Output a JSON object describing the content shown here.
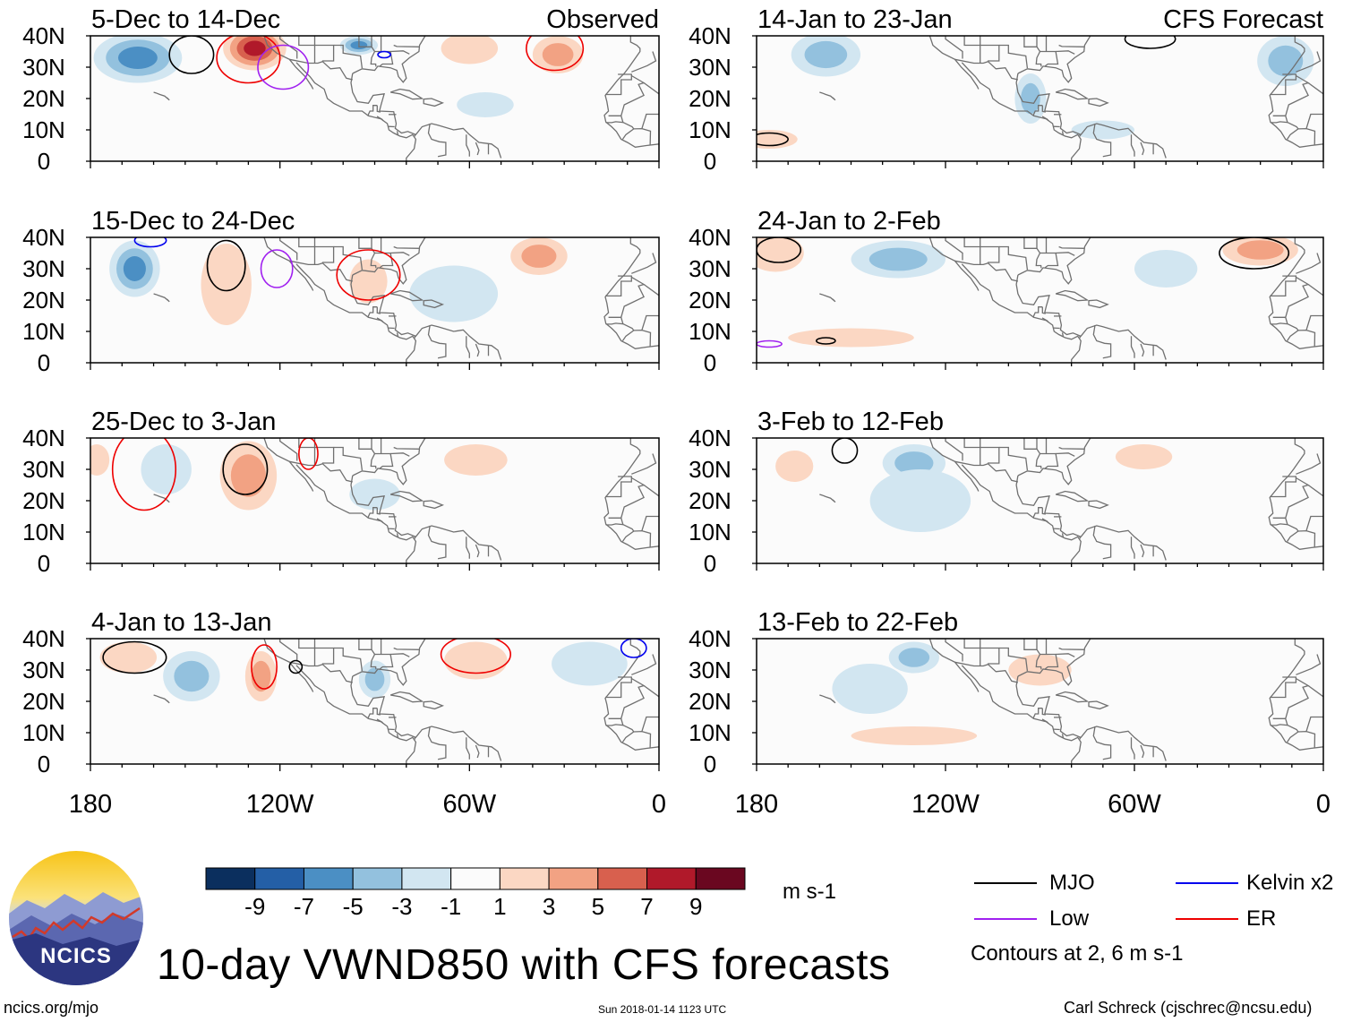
{
  "title": "10-day VWND850 with CFS forecasts",
  "footer": {
    "left": "ncics.org/mjo",
    "center": "Sun 2018-01-14 1123 UTC",
    "right": "Carl Schreck (cjschrec@ncsu.edu)"
  },
  "logo": {
    "text": "NCICS"
  },
  "column_labels": {
    "observed": "Observed",
    "forecast": "CFS Forecast"
  },
  "colorbar": {
    "units": "m s-1",
    "tick_labels": [
      "-9",
      "-7",
      "-5",
      "-3",
      "-1",
      "1",
      "3",
      "5",
      "7",
      "9"
    ],
    "colors": [
      "#0b2f5e",
      "#245fa6",
      "#4b8fc4",
      "#93c1de",
      "#d2e6f1",
      "#fbfbfb",
      "#fbd7c3",
      "#f2a283",
      "#d8604e",
      "#b0192a",
      "#6a0720"
    ]
  },
  "legend": {
    "items": [
      {
        "label": "MJO",
        "color": "#000000"
      },
      {
        "label": "Low",
        "color": "#a020f0"
      },
      {
        "label": "Kelvin x2",
        "color": "#0000ee"
      },
      {
        "label": "ER",
        "color": "#ee0000"
      }
    ],
    "note": "Contours at 2, 6 m s-1"
  },
  "chart_data": {
    "type": "heatmap",
    "variable": "VWND850",
    "x_ticks": [
      "180",
      "120W",
      "60W",
      "0"
    ],
    "y_ticks": [
      "40N",
      "30N",
      "20N",
      "10N",
      "0"
    ],
    "x_range": [
      -180,
      0
    ],
    "y_range": [
      0,
      40
    ],
    "panels": [
      {
        "period": "5-Dec to 14-Dec",
        "source": "Observed",
        "blobs": [
          {
            "lon": -165,
            "lat": 33,
            "rx": 14,
            "ry": 8,
            "value": -6
          },
          {
            "lon": -128,
            "lat": 36,
            "rx": 10,
            "ry": 7,
            "value": 9
          },
          {
            "lon": -95,
            "lat": 37,
            "rx": 6,
            "ry": 3,
            "value": -7
          },
          {
            "lon": -60,
            "lat": 36,
            "rx": 9,
            "ry": 5,
            "value": 3
          },
          {
            "lon": -32,
            "lat": 34,
            "rx": 8,
            "ry": 6,
            "value": 4
          },
          {
            "lon": -55,
            "lat": 18,
            "rx": 9,
            "ry": 4,
            "value": -1.5
          }
        ],
        "contours": [
          {
            "type": "MJO",
            "lon": -148,
            "lat": 34,
            "rx": 7,
            "ry": 6
          },
          {
            "type": "ER",
            "lon": -130,
            "lat": 33,
            "rx": 10,
            "ry": 8
          },
          {
            "type": "Low",
            "lon": -119,
            "lat": 30,
            "rx": 8,
            "ry": 7
          },
          {
            "type": "ER",
            "lon": -33,
            "lat": 36,
            "rx": 9,
            "ry": 7
          },
          {
            "type": "Kelvin x2",
            "lon": -87,
            "lat": 34,
            "rx": 2,
            "ry": 1
          }
        ]
      },
      {
        "period": "15-Dec to 24-Dec",
        "source": "Observed",
        "blobs": [
          {
            "lon": -166,
            "lat": 30,
            "rx": 8,
            "ry": 9,
            "value": -6
          },
          {
            "lon": -137,
            "lat": 25,
            "rx": 8,
            "ry": 13,
            "value": 3
          },
          {
            "lon": -92,
            "lat": 26,
            "rx": 6,
            "ry": 7,
            "value": 3
          },
          {
            "lon": -38,
            "lat": 34,
            "rx": 9,
            "ry": 6,
            "value": 5
          },
          {
            "lon": -65,
            "lat": 22,
            "rx": 14,
            "ry": 9,
            "value": -1.5
          }
        ],
        "contours": [
          {
            "type": "MJO",
            "lon": -137,
            "lat": 31,
            "rx": 6,
            "ry": 8
          },
          {
            "type": "Low",
            "lon": -121,
            "lat": 30,
            "rx": 5,
            "ry": 6
          },
          {
            "type": "ER",
            "lon": -92,
            "lat": 28,
            "rx": 10,
            "ry": 8
          },
          {
            "type": "Kelvin x2",
            "lon": -161,
            "lat": 39,
            "rx": 5,
            "ry": 2
          }
        ]
      },
      {
        "period": "25-Dec to 3-Jan",
        "source": "Observed",
        "blobs": [
          {
            "lon": -130,
            "lat": 28,
            "rx": 9,
            "ry": 11,
            "value": 5
          },
          {
            "lon": -156,
            "lat": 30,
            "rx": 8,
            "ry": 8,
            "value": -3
          },
          {
            "lon": -58,
            "lat": 33,
            "rx": 10,
            "ry": 5,
            "value": 3
          },
          {
            "lon": -90,
            "lat": 22,
            "rx": 8,
            "ry": 5,
            "value": -3
          },
          {
            "lon": -178,
            "lat": 33,
            "rx": 4,
            "ry": 5,
            "value": 3
          }
        ],
        "contours": [
          {
            "type": "MJO",
            "lon": -131,
            "lat": 30,
            "rx": 7,
            "ry": 8
          },
          {
            "type": "ER",
            "lon": -163,
            "lat": 30,
            "rx": 10,
            "ry": 13
          },
          {
            "type": "ER",
            "lon": -111,
            "lat": 35,
            "rx": 3,
            "ry": 5
          }
        ]
      },
      {
        "period": "4-Jan to 13-Jan",
        "source": "Observed",
        "blobs": [
          {
            "lon": -148,
            "lat": 28,
            "rx": 9,
            "ry": 8,
            "value": -5
          },
          {
            "lon": -126,
            "lat": 28,
            "rx": 5,
            "ry": 8,
            "value": 5
          },
          {
            "lon": -90,
            "lat": 27,
            "rx": 5,
            "ry": 6,
            "value": -5
          },
          {
            "lon": -58,
            "lat": 33,
            "rx": 10,
            "ry": 6,
            "value": 3
          },
          {
            "lon": -22,
            "lat": 32,
            "rx": 12,
            "ry": 7,
            "value": -3
          },
          {
            "lon": -168,
            "lat": 34,
            "rx": 9,
            "ry": 5,
            "value": 3
          }
        ],
        "contours": [
          {
            "type": "MJO",
            "lon": -166,
            "lat": 34,
            "rx": 10,
            "ry": 5
          },
          {
            "type": "ER",
            "lon": -125,
            "lat": 31,
            "rx": 4,
            "ry": 7
          },
          {
            "type": "ER",
            "lon": -58,
            "lat": 35,
            "rx": 11,
            "ry": 6
          },
          {
            "type": "MJO",
            "lon": -115,
            "lat": 31,
            "rx": 2,
            "ry": 2
          },
          {
            "type": "Kelvin x2",
            "lon": -8,
            "lat": 37,
            "rx": 4,
            "ry": 3
          }
        ]
      },
      {
        "period": "14-Jan to 23-Jan",
        "source": "CFS Forecast",
        "blobs": [
          {
            "lon": -158,
            "lat": 34,
            "rx": 11,
            "ry": 7,
            "value": -5
          },
          {
            "lon": -93,
            "lat": 20,
            "rx": 5,
            "ry": 8,
            "value": -4
          },
          {
            "lon": -12,
            "lat": 32,
            "rx": 9,
            "ry": 8,
            "value": -4
          },
          {
            "lon": -176,
            "lat": 7,
            "rx": 9,
            "ry": 3,
            "value": 3
          },
          {
            "lon": -70,
            "lat": 10,
            "rx": 10,
            "ry": 3,
            "value": -1.5
          }
        ],
        "contours": [
          {
            "type": "MJO",
            "lon": -176,
            "lat": 7,
            "rx": 6,
            "ry": 2
          },
          {
            "type": "MJO",
            "lon": -55,
            "lat": 39,
            "rx": 8,
            "ry": 3
          }
        ]
      },
      {
        "period": "24-Jan to 2-Feb",
        "source": "CFS Forecast",
        "blobs": [
          {
            "lon": -135,
            "lat": 33,
            "rx": 15,
            "ry": 6,
            "value": -5
          },
          {
            "lon": -20,
            "lat": 36,
            "rx": 12,
            "ry": 5,
            "value": 4
          },
          {
            "lon": -174,
            "lat": 35,
            "rx": 9,
            "ry": 6,
            "value": 3
          },
          {
            "lon": -50,
            "lat": 30,
            "rx": 10,
            "ry": 6,
            "value": -3
          },
          {
            "lon": -150,
            "lat": 8,
            "rx": 20,
            "ry": 3,
            "value": 2
          }
        ],
        "contours": [
          {
            "type": "MJO",
            "lon": -173,
            "lat": 36,
            "rx": 7,
            "ry": 4
          },
          {
            "type": "MJO",
            "lon": -22,
            "lat": 35,
            "rx": 11,
            "ry": 5
          },
          {
            "type": "MJO",
            "lon": -158,
            "lat": 7,
            "rx": 3,
            "ry": 1
          },
          {
            "type": "Low",
            "lon": -176,
            "lat": 6,
            "rx": 4,
            "ry": 1
          }
        ]
      },
      {
        "period": "3-Feb to 12-Feb",
        "source": "CFS Forecast",
        "blobs": [
          {
            "lon": -130,
            "lat": 32,
            "rx": 10,
            "ry": 6,
            "value": -5
          },
          {
            "lon": -168,
            "lat": 31,
            "rx": 6,
            "ry": 5,
            "value": 3
          },
          {
            "lon": -128,
            "lat": 20,
            "rx": 16,
            "ry": 10,
            "value": -1.5
          },
          {
            "lon": -57,
            "lat": 34,
            "rx": 9,
            "ry": 4,
            "value": 2
          }
        ],
        "contours": [
          {
            "type": "MJO",
            "lon": -152,
            "lat": 36,
            "rx": 4,
            "ry": 4
          }
        ]
      },
      {
        "period": "13-Feb to 22-Feb",
        "source": "CFS Forecast",
        "blobs": [
          {
            "lon": -130,
            "lat": 34,
            "rx": 8,
            "ry": 5,
            "value": -4
          },
          {
            "lon": -144,
            "lat": 24,
            "rx": 12,
            "ry": 8,
            "value": -1.5
          },
          {
            "lon": -130,
            "lat": 9,
            "rx": 20,
            "ry": 3,
            "value": 2
          },
          {
            "lon": -90,
            "lat": 30,
            "rx": 10,
            "ry": 5,
            "value": 1.5
          }
        ],
        "contours": []
      }
    ]
  }
}
